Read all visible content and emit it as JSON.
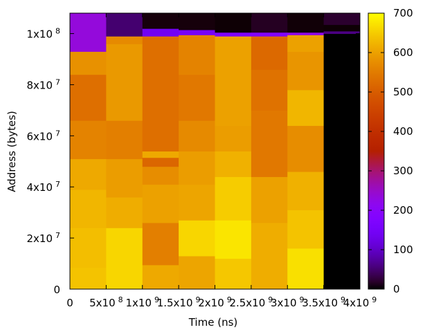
{
  "chart_data": {
    "type": "heatmap",
    "xlabel": "Time (ns)",
    "ylabel": "Address (bytes)",
    "xlim": [
      0,
      4000000000
    ],
    "ylim": [
      0,
      108000000
    ],
    "x_ticks": [
      {
        "value": 0,
        "label": "0",
        "exp": ""
      },
      {
        "value": 500000000,
        "label": "5x10",
        "exp": "8"
      },
      {
        "value": 1000000000,
        "label": "1x10",
        "exp": "9"
      },
      {
        "value": 1500000000,
        "label": "1.5x10",
        "exp": "9"
      },
      {
        "value": 2000000000,
        "label": "2x10",
        "exp": "9"
      },
      {
        "value": 2500000000,
        "label": "2.5x10",
        "exp": "9"
      },
      {
        "value": 3000000000,
        "label": "3x10",
        "exp": "9"
      },
      {
        "value": 3500000000,
        "label": "3.5x10",
        "exp": "9"
      },
      {
        "value": 4000000000,
        "label": "4x10",
        "exp": "9"
      }
    ],
    "y_ticks": [
      {
        "value": 0,
        "label": "0",
        "exp": ""
      },
      {
        "value": 20000000,
        "label": "2x10",
        "exp": "7"
      },
      {
        "value": 40000000,
        "label": "4x10",
        "exp": "7"
      },
      {
        "value": 60000000,
        "label": "6x10",
        "exp": "7"
      },
      {
        "value": 80000000,
        "label": "8x10",
        "exp": "7"
      },
      {
        "value": 100000000,
        "label": "1x10",
        "exp": "8"
      }
    ],
    "colorbar": {
      "range": [
        0,
        700
      ],
      "ticks": [
        {
          "value": 0,
          "label": "0"
        },
        {
          "value": 100,
          "label": "100"
        },
        {
          "value": 200,
          "label": "200"
        },
        {
          "value": 300,
          "label": "300"
        },
        {
          "value": 400,
          "label": "400"
        },
        {
          "value": 500,
          "label": "500"
        },
        {
          "value": 600,
          "label": "600"
        },
        {
          "value": 700,
          "label": "700"
        }
      ]
    },
    "columns": [
      {
        "x0": 0,
        "x1": 500000000,
        "cells": [
          {
            "y0": 0,
            "y1": 8500000,
            "value": 640
          },
          {
            "y0": 8500000,
            "y1": 24000000,
            "value": 635
          },
          {
            "y0": 24000000,
            "y1": 39000000,
            "value": 625
          },
          {
            "y0": 39000000,
            "y1": 51000000,
            "value": 610
          },
          {
            "y0": 51000000,
            "y1": 66000000,
            "value": 560
          },
          {
            "y0": 66000000,
            "y1": 84000000,
            "value": 530
          },
          {
            "y0": 84000000,
            "y1": 93000000,
            "value": 580
          },
          {
            "y0": 93000000,
            "y1": 108000000,
            "value": 235
          }
        ]
      },
      {
        "x0": 500000000,
        "x1": 1000000000,
        "cells": [
          {
            "y0": 0,
            "y1": 24000000,
            "value": 660
          },
          {
            "y0": 24000000,
            "y1": 36000000,
            "value": 615
          },
          {
            "y0": 36000000,
            "y1": 51000000,
            "value": 595
          },
          {
            "y0": 51000000,
            "y1": 66000000,
            "value": 555
          },
          {
            "y0": 66000000,
            "y1": 96000000,
            "value": 590
          },
          {
            "y0": 96000000,
            "y1": 99000000,
            "value": 570
          },
          {
            "y0": 99000000,
            "y1": 108000000,
            "value": 50
          }
        ]
      },
      {
        "x0": 1000000000,
        "x1": 1500000000,
        "cells": [
          {
            "y0": 0,
            "y1": 9500000,
            "value": 610
          },
          {
            "y0": 9500000,
            "y1": 26000000,
            "value": 555
          },
          {
            "y0": 26000000,
            "y1": 41000000,
            "value": 600
          },
          {
            "y0": 41000000,
            "y1": 48000000,
            "value": 575
          },
          {
            "y0": 48000000,
            "y1": 51500000,
            "value": 515
          },
          {
            "y0": 51500000,
            "y1": 54000000,
            "value": 610
          },
          {
            "y0": 54000000,
            "y1": 99000000,
            "value": 530
          },
          {
            "y0": 99000000,
            "y1": 102000000,
            "value": 140
          },
          {
            "y0": 102000000,
            "y1": 108000000,
            "value": 5
          }
        ]
      },
      {
        "x0": 1500000000,
        "x1": 2000000000,
        "cells": [
          {
            "y0": 0,
            "y1": 13000000,
            "value": 605
          },
          {
            "y0": 13000000,
            "y1": 27000000,
            "value": 660
          },
          {
            "y0": 27000000,
            "y1": 41000000,
            "value": 605
          },
          {
            "y0": 41000000,
            "y1": 54000000,
            "value": 595
          },
          {
            "y0": 54000000,
            "y1": 66000000,
            "value": 570
          },
          {
            "y0": 66000000,
            "y1": 84000000,
            "value": 545
          },
          {
            "y0": 84000000,
            "y1": 99500000,
            "value": 560
          },
          {
            "y0": 99500000,
            "y1": 101500000,
            "value": 150
          },
          {
            "y0": 101500000,
            "y1": 108000000,
            "value": 5
          }
        ]
      },
      {
        "x0": 2000000000,
        "x1": 2500000000,
        "cells": [
          {
            "y0": 0,
            "y1": 12000000,
            "value": 645
          },
          {
            "y0": 12000000,
            "y1": 27000000,
            "value": 675
          },
          {
            "y0": 27000000,
            "y1": 44000000,
            "value": 650
          },
          {
            "y0": 44000000,
            "y1": 54000000,
            "value": 620
          },
          {
            "y0": 54000000,
            "y1": 64000000,
            "value": 595
          },
          {
            "y0": 64000000,
            "y1": 99000000,
            "value": 600
          },
          {
            "y0": 99000000,
            "y1": 100500000,
            "value": 170
          },
          {
            "y0": 100500000,
            "y1": 108000000,
            "value": 2
          }
        ]
      },
      {
        "x0": 2500000000,
        "x1": 3000000000,
        "cells": [
          {
            "y0": 0,
            "y1": 26000000,
            "value": 615
          },
          {
            "y0": 26000000,
            "y1": 44000000,
            "value": 600
          },
          {
            "y0": 44000000,
            "y1": 70000000,
            "value": 545
          },
          {
            "y0": 70000000,
            "y1": 86000000,
            "value": 535
          },
          {
            "y0": 86000000,
            "y1": 99000000,
            "value": 520
          },
          {
            "y0": 99000000,
            "y1": 100500000,
            "value": 180
          },
          {
            "y0": 100500000,
            "y1": 108000000,
            "value": 15
          }
        ]
      },
      {
        "x0": 3000000000,
        "x1": 3500000000,
        "cells": [
          {
            "y0": 0,
            "y1": 16000000,
            "value": 670
          },
          {
            "y0": 16000000,
            "y1": 31000000,
            "value": 640
          },
          {
            "y0": 31000000,
            "y1": 46000000,
            "value": 620
          },
          {
            "y0": 46000000,
            "y1": 64000000,
            "value": 575
          },
          {
            "y0": 64000000,
            "y1": 78000000,
            "value": 625
          },
          {
            "y0": 78000000,
            "y1": 93000000,
            "value": 585
          },
          {
            "y0": 93000000,
            "y1": 99500000,
            "value": 600
          },
          {
            "y0": 99500000,
            "y1": 100500000,
            "value": 220
          },
          {
            "y0": 100500000,
            "y1": 108000000,
            "value": 3
          }
        ]
      },
      {
        "x0": 3500000000,
        "x1": 4000000000,
        "cells": [
          {
            "y0": 0,
            "y1": 100000000,
            "value": 0
          },
          {
            "y0": 100000000,
            "y1": 101000000,
            "value": 60
          },
          {
            "y0": 101000000,
            "y1": 103500000,
            "value": 2
          },
          {
            "y0": 103500000,
            "y1": 108000000,
            "value": 20
          }
        ]
      }
    ]
  }
}
